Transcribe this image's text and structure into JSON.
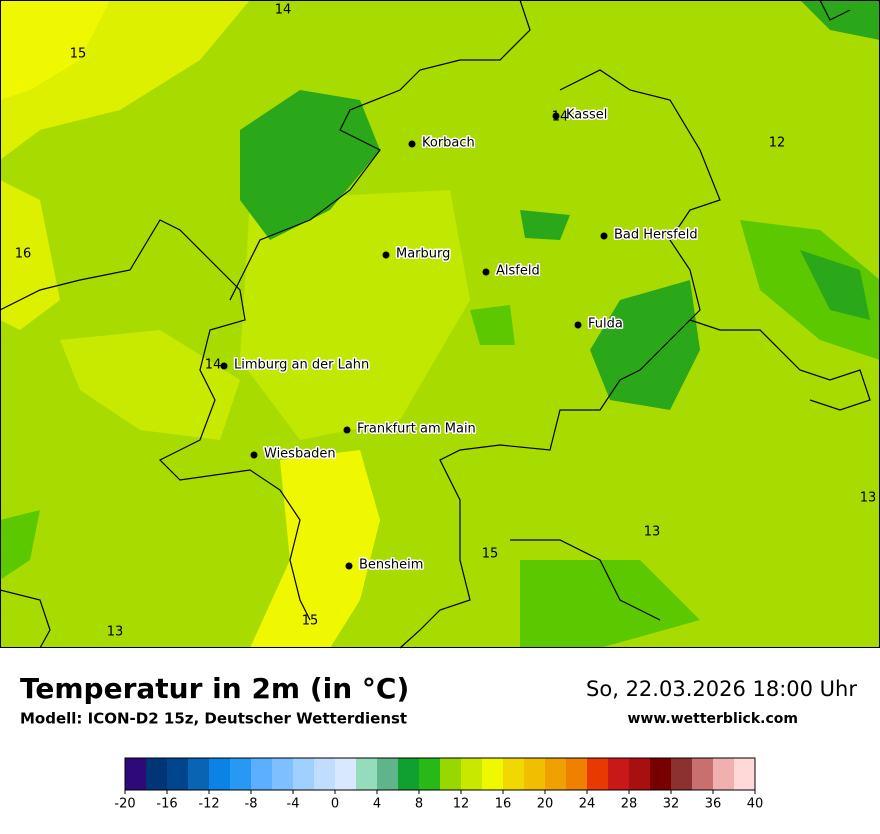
{
  "header": {
    "title": "Temperatur in 2m (in °C)",
    "subtitle": "Modell: ICON-D2 15z, Deutscher Wetterdienst",
    "date": "So, 22.03.2026 18:00 Uhr",
    "website": "www.wetterblick.com"
  },
  "map": {
    "cities": [
      "Kassel",
      "Korbach",
      "Bad Hersfeld",
      "Marburg",
      "Alsfeld",
      "Fulda",
      "Limburg an der Lahn",
      "Frankfurt am Main",
      "Wiesbaden",
      "Bensheim"
    ],
    "contour_labels": [
      14,
      15,
      16,
      14,
      14,
      12,
      13,
      13,
      15,
      15,
      13
    ]
  },
  "colorbar": {
    "range": [
      -20,
      40
    ],
    "ticks": [
      -20,
      -16,
      -12,
      -8,
      -4,
      0,
      4,
      8,
      12,
      16,
      20,
      24,
      28,
      32,
      36,
      40
    ],
    "colors": [
      "#2e0a78",
      "#003578",
      "#00468c",
      "#0a64b4",
      "#0a82e6",
      "#2898f5",
      "#5ab0ff",
      "#7dbfff",
      "#a0d0ff",
      "#c0dcff",
      "#d8e9ff",
      "#94dcbc",
      "#5fb48a",
      "#10a030",
      "#28b818",
      "#96d800",
      "#c8e800",
      "#f0f800",
      "#f0d800",
      "#f0c000",
      "#f0a000",
      "#f08000",
      "#e83a00",
      "#c81818",
      "#a81010",
      "#780000",
      "#8c3030",
      "#c87070",
      "#f0b0b0",
      "#ffd8d8"
    ]
  }
}
